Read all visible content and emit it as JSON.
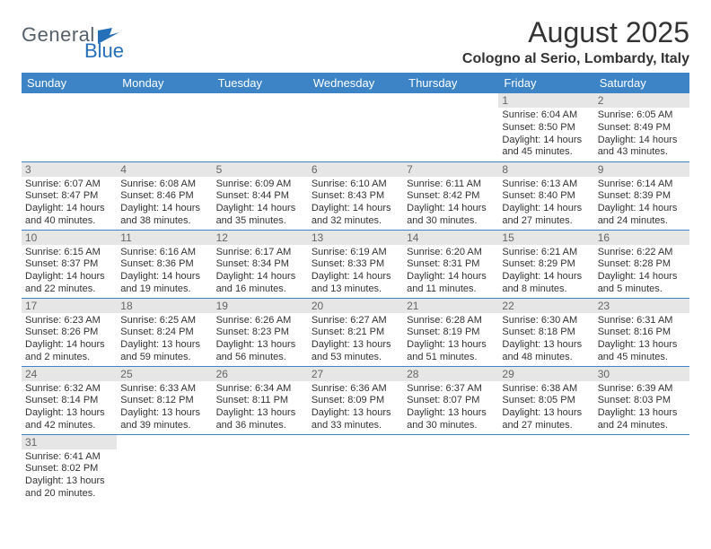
{
  "logo": {
    "general": "General",
    "blue": "Blue"
  },
  "header": {
    "title": "August 2025",
    "location": "Cologno al Serio, Lombardy, Italy"
  },
  "colors": {
    "header_bg": "#3c84c5",
    "header_text": "#ffffff",
    "daynum_bg": "#e6e6e6",
    "daynum_text": "#666666",
    "cell_border": "#3c84c5",
    "logo_general": "#55606a",
    "logo_blue": "#2570b8",
    "body_text": "#333333"
  },
  "weekdays": [
    "Sunday",
    "Monday",
    "Tuesday",
    "Wednesday",
    "Thursday",
    "Friday",
    "Saturday"
  ],
  "weeks": [
    [
      null,
      null,
      null,
      null,
      null,
      {
        "n": "1",
        "sr": "Sunrise: 6:04 AM",
        "ss": "Sunset: 8:50 PM",
        "d1": "Daylight: 14 hours",
        "d2": "and 45 minutes."
      },
      {
        "n": "2",
        "sr": "Sunrise: 6:05 AM",
        "ss": "Sunset: 8:49 PM",
        "d1": "Daylight: 14 hours",
        "d2": "and 43 minutes."
      }
    ],
    [
      {
        "n": "3",
        "sr": "Sunrise: 6:07 AM",
        "ss": "Sunset: 8:47 PM",
        "d1": "Daylight: 14 hours",
        "d2": "and 40 minutes."
      },
      {
        "n": "4",
        "sr": "Sunrise: 6:08 AM",
        "ss": "Sunset: 8:46 PM",
        "d1": "Daylight: 14 hours",
        "d2": "and 38 minutes."
      },
      {
        "n": "5",
        "sr": "Sunrise: 6:09 AM",
        "ss": "Sunset: 8:44 PM",
        "d1": "Daylight: 14 hours",
        "d2": "and 35 minutes."
      },
      {
        "n": "6",
        "sr": "Sunrise: 6:10 AM",
        "ss": "Sunset: 8:43 PM",
        "d1": "Daylight: 14 hours",
        "d2": "and 32 minutes."
      },
      {
        "n": "7",
        "sr": "Sunrise: 6:11 AM",
        "ss": "Sunset: 8:42 PM",
        "d1": "Daylight: 14 hours",
        "d2": "and 30 minutes."
      },
      {
        "n": "8",
        "sr": "Sunrise: 6:13 AM",
        "ss": "Sunset: 8:40 PM",
        "d1": "Daylight: 14 hours",
        "d2": "and 27 minutes."
      },
      {
        "n": "9",
        "sr": "Sunrise: 6:14 AM",
        "ss": "Sunset: 8:39 PM",
        "d1": "Daylight: 14 hours",
        "d2": "and 24 minutes."
      }
    ],
    [
      {
        "n": "10",
        "sr": "Sunrise: 6:15 AM",
        "ss": "Sunset: 8:37 PM",
        "d1": "Daylight: 14 hours",
        "d2": "and 22 minutes."
      },
      {
        "n": "11",
        "sr": "Sunrise: 6:16 AM",
        "ss": "Sunset: 8:36 PM",
        "d1": "Daylight: 14 hours",
        "d2": "and 19 minutes."
      },
      {
        "n": "12",
        "sr": "Sunrise: 6:17 AM",
        "ss": "Sunset: 8:34 PM",
        "d1": "Daylight: 14 hours",
        "d2": "and 16 minutes."
      },
      {
        "n": "13",
        "sr": "Sunrise: 6:19 AM",
        "ss": "Sunset: 8:33 PM",
        "d1": "Daylight: 14 hours",
        "d2": "and 13 minutes."
      },
      {
        "n": "14",
        "sr": "Sunrise: 6:20 AM",
        "ss": "Sunset: 8:31 PM",
        "d1": "Daylight: 14 hours",
        "d2": "and 11 minutes."
      },
      {
        "n": "15",
        "sr": "Sunrise: 6:21 AM",
        "ss": "Sunset: 8:29 PM",
        "d1": "Daylight: 14 hours",
        "d2": "and 8 minutes."
      },
      {
        "n": "16",
        "sr": "Sunrise: 6:22 AM",
        "ss": "Sunset: 8:28 PM",
        "d1": "Daylight: 14 hours",
        "d2": "and 5 minutes."
      }
    ],
    [
      {
        "n": "17",
        "sr": "Sunrise: 6:23 AM",
        "ss": "Sunset: 8:26 PM",
        "d1": "Daylight: 14 hours",
        "d2": "and 2 minutes."
      },
      {
        "n": "18",
        "sr": "Sunrise: 6:25 AM",
        "ss": "Sunset: 8:24 PM",
        "d1": "Daylight: 13 hours",
        "d2": "and 59 minutes."
      },
      {
        "n": "19",
        "sr": "Sunrise: 6:26 AM",
        "ss": "Sunset: 8:23 PM",
        "d1": "Daylight: 13 hours",
        "d2": "and 56 minutes."
      },
      {
        "n": "20",
        "sr": "Sunrise: 6:27 AM",
        "ss": "Sunset: 8:21 PM",
        "d1": "Daylight: 13 hours",
        "d2": "and 53 minutes."
      },
      {
        "n": "21",
        "sr": "Sunrise: 6:28 AM",
        "ss": "Sunset: 8:19 PM",
        "d1": "Daylight: 13 hours",
        "d2": "and 51 minutes."
      },
      {
        "n": "22",
        "sr": "Sunrise: 6:30 AM",
        "ss": "Sunset: 8:18 PM",
        "d1": "Daylight: 13 hours",
        "d2": "and 48 minutes."
      },
      {
        "n": "23",
        "sr": "Sunrise: 6:31 AM",
        "ss": "Sunset: 8:16 PM",
        "d1": "Daylight: 13 hours",
        "d2": "and 45 minutes."
      }
    ],
    [
      {
        "n": "24",
        "sr": "Sunrise: 6:32 AM",
        "ss": "Sunset: 8:14 PM",
        "d1": "Daylight: 13 hours",
        "d2": "and 42 minutes."
      },
      {
        "n": "25",
        "sr": "Sunrise: 6:33 AM",
        "ss": "Sunset: 8:12 PM",
        "d1": "Daylight: 13 hours",
        "d2": "and 39 minutes."
      },
      {
        "n": "26",
        "sr": "Sunrise: 6:34 AM",
        "ss": "Sunset: 8:11 PM",
        "d1": "Daylight: 13 hours",
        "d2": "and 36 minutes."
      },
      {
        "n": "27",
        "sr": "Sunrise: 6:36 AM",
        "ss": "Sunset: 8:09 PM",
        "d1": "Daylight: 13 hours",
        "d2": "and 33 minutes."
      },
      {
        "n": "28",
        "sr": "Sunrise: 6:37 AM",
        "ss": "Sunset: 8:07 PM",
        "d1": "Daylight: 13 hours",
        "d2": "and 30 minutes."
      },
      {
        "n": "29",
        "sr": "Sunrise: 6:38 AM",
        "ss": "Sunset: 8:05 PM",
        "d1": "Daylight: 13 hours",
        "d2": "and 27 minutes."
      },
      {
        "n": "30",
        "sr": "Sunrise: 6:39 AM",
        "ss": "Sunset: 8:03 PM",
        "d1": "Daylight: 13 hours",
        "d2": "and 24 minutes."
      }
    ],
    [
      {
        "n": "31",
        "sr": "Sunrise: 6:41 AM",
        "ss": "Sunset: 8:02 PM",
        "d1": "Daylight: 13 hours",
        "d2": "and 20 minutes."
      },
      null,
      null,
      null,
      null,
      null,
      null
    ]
  ]
}
